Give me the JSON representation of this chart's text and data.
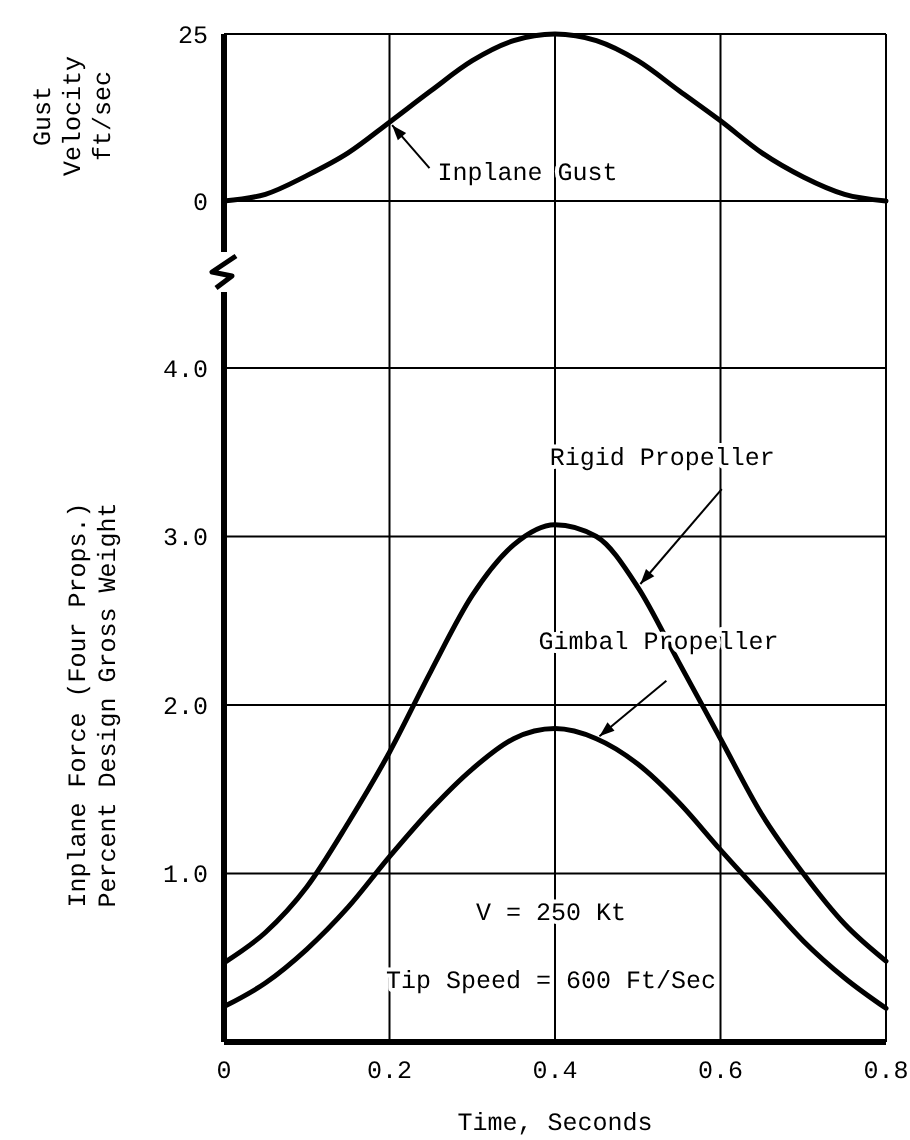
{
  "chart_data": [
    {
      "type": "line",
      "ylabel": "Gust\nVelocity\nft/sec",
      "x": [
        0,
        0.05,
        0.1,
        0.15,
        0.2,
        0.25,
        0.3,
        0.35,
        0.4,
        0.45,
        0.5,
        0.55,
        0.6,
        0.65,
        0.7,
        0.75,
        0.8
      ],
      "series": [
        {
          "name": "Inplane Gust",
          "color": "#000000",
          "values": [
            0,
            1,
            3.8,
            7.2,
            11.8,
            16.5,
            21,
            24,
            25,
            24,
            21,
            16.5,
            12,
            7.2,
            3.6,
            1,
            0
          ]
        }
      ],
      "xlim": [
        0,
        0.8
      ],
      "xticks": [
        0,
        0.2,
        0.4,
        0.6,
        0.8
      ],
      "ylim": [
        -25,
        25
      ],
      "yticks": [
        0,
        25
      ],
      "grid": true,
      "tick_labels": "y",
      "marker": "none",
      "line_style": "solid"
    },
    {
      "type": "line",
      "ylabel": "Inplane Force (Four Props.)\nPercent Design Gross Weight",
      "xlabel": "Time, Seconds",
      "x": [
        0,
        0.05,
        0.1,
        0.15,
        0.2,
        0.25,
        0.3,
        0.35,
        0.4,
        0.45,
        0.5,
        0.55,
        0.6,
        0.65,
        0.7,
        0.75,
        0.8
      ],
      "series": [
        {
          "name": "Rigid Propeller",
          "color": "#000000",
          "values": [
            0.47,
            0.65,
            0.92,
            1.3,
            1.72,
            2.2,
            2.65,
            2.95,
            3.07,
            3.0,
            2.7,
            2.25,
            1.8,
            1.35,
            1.0,
            0.7,
            0.48
          ]
        },
        {
          "name": "Gimbal Propeller",
          "color": "#000000",
          "values": [
            0.21,
            0.35,
            0.55,
            0.8,
            1.1,
            1.38,
            1.62,
            1.8,
            1.86,
            1.8,
            1.65,
            1.42,
            1.14,
            0.87,
            0.6,
            0.38,
            0.2
          ]
        }
      ],
      "annotations": [
        "V = 250 Kt",
        "Tip Speed = 600 Ft/Sec"
      ],
      "xlim": [
        0,
        0.8
      ],
      "xticks": [
        0,
        0.2,
        0.4,
        0.6,
        0.8
      ],
      "ylim": [
        0,
        4
      ],
      "yticks": [
        {
          "value": 1,
          "label": "1.0"
        },
        {
          "value": 2,
          "label": "2.0"
        },
        {
          "value": 3,
          "label": "3.0"
        },
        {
          "value": 4,
          "label": "4.0"
        }
      ],
      "grid": true,
      "marker": "none",
      "line_style": "solid"
    }
  ]
}
